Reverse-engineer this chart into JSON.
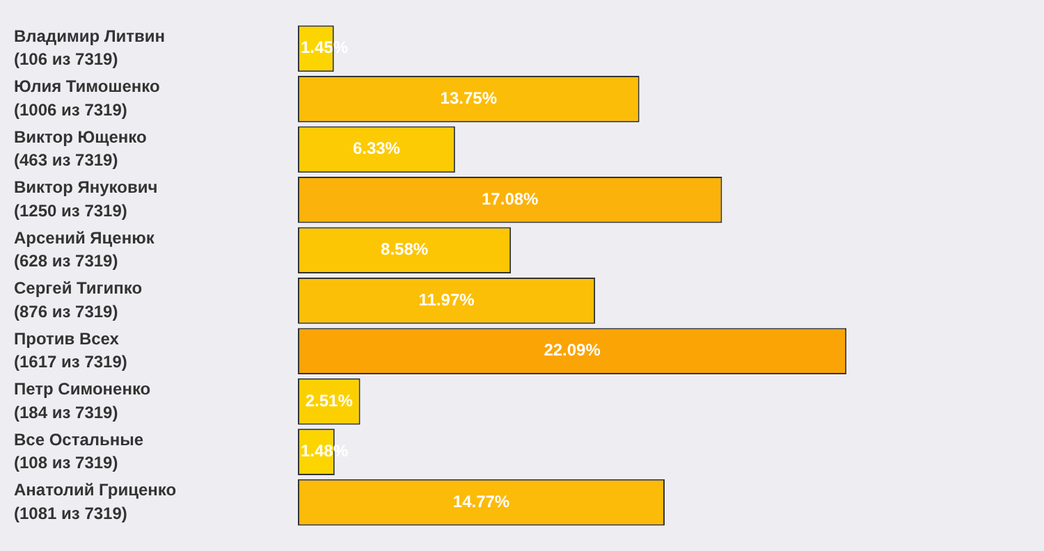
{
  "chart_data": {
    "type": "bar",
    "orientation": "horizontal",
    "categories": [
      "Владимир Литвин\n(106 из 7319)",
      "Юлия Тимошенко\n(1006 из 7319)",
      "Виктор Ющенко\n(463 из 7319)",
      "Виктор Янукович\n(1250 из 7319)",
      "Арсений Яценюк\n(628 из 7319)",
      "Сергей Тигипко\n(876 из 7319)",
      "Против Всех\n(1617 из 7319)",
      "Петр Симоненко\n(184 из 7319)",
      "Все Остальные\n(108 из 7319)",
      "Анатолий Гриценко\n(1081 из 7319)"
    ],
    "values": [
      1.45,
      13.75,
      6.33,
      17.08,
      8.58,
      11.97,
      22.09,
      2.51,
      1.48,
      14.77
    ],
    "value_labels": [
      "1.45%",
      "13.75%",
      "6.33%",
      "17.08%",
      "8.58%",
      "11.97%",
      "22.09%",
      "2.51%",
      "1.48%",
      "14.77%"
    ],
    "colors": [
      "#fcd500",
      "#fcbd08",
      "#fccb03",
      "#fbb20a",
      "#fcc605",
      "#fcbf08",
      "#fba406",
      "#fcd000",
      "#fcd400",
      "#fcba09"
    ],
    "tick_labels": "y",
    "grid": false,
    "legend": false
  }
}
